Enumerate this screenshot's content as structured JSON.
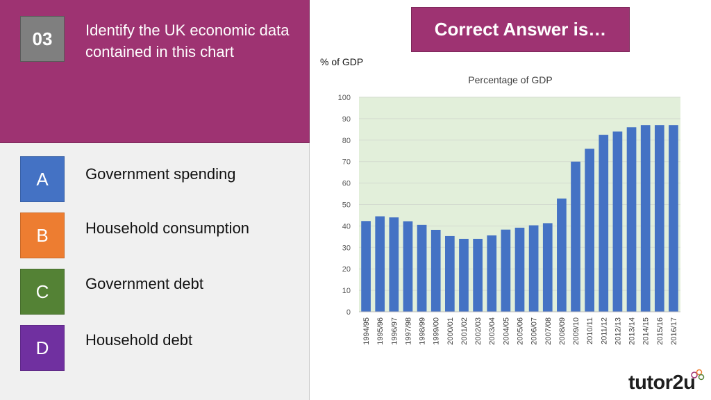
{
  "question": {
    "number": "03",
    "text": "Identify the UK economic data contained in this chart"
  },
  "options": [
    {
      "letter": "A",
      "label": "Government spending",
      "color": "#4472c4"
    },
    {
      "letter": "B",
      "label": "Household consumption",
      "color": "#ed7d31"
    },
    {
      "letter": "C",
      "label": "Government debt",
      "color": "#548235"
    },
    {
      "letter": "D",
      "label": "Household debt",
      "color": "#7030a0"
    }
  ],
  "answer_button": {
    "label": "Correct Answer is…"
  },
  "colors": {
    "accent": "#9e3372",
    "bar": "#4472c4",
    "plot_bg": "#e2efda"
  },
  "brand": {
    "logo_text": "tutor2u"
  },
  "chart_data": {
    "type": "bar",
    "title": "Percentage of GDP",
    "ylabel": "% of GDP",
    "xlabel": "",
    "ylim": [
      0,
      100
    ],
    "yticks": [
      0,
      10,
      20,
      30,
      40,
      50,
      60,
      70,
      80,
      90,
      100
    ],
    "grid": true,
    "categories": [
      "1994/95",
      "1995/96",
      "1996/97",
      "1997/98",
      "1998/99",
      "1999/00",
      "2000/01",
      "2001/02",
      "2002/03",
      "2003/04",
      "2004/05",
      "2005/06",
      "2006/07",
      "2007/08",
      "2008/09",
      "2009/10",
      "2010/11",
      "2011/12",
      "2012/13",
      "2013/14",
      "2014/15",
      "2015/16",
      "2016/17"
    ],
    "values": [
      42.3,
      44.5,
      44,
      42.2,
      40.5,
      38.2,
      35.3,
      34,
      34,
      35.6,
      38.3,
      39.2,
      40.3,
      41.3,
      52.8,
      70,
      76,
      82.5,
      84,
      86,
      87,
      87,
      87
    ]
  }
}
